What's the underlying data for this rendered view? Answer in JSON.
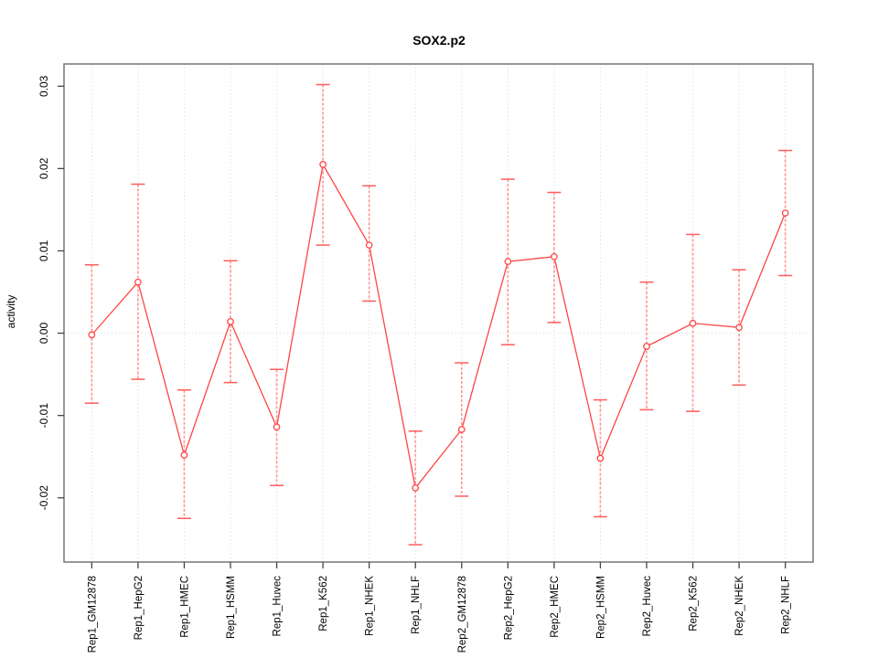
{
  "figure": {
    "title": "SOX2.p2"
  },
  "chart_data": {
    "type": "line",
    "title": "SOX2.p2",
    "xlabel": "",
    "ylabel": "activity",
    "legend_position": "none",
    "grid": {
      "vertical": "dotted line at every category",
      "horizontal": "dotted line at y=0 only"
    },
    "categories": [
      "Rep1_GM12878",
      "Rep1_HepG2",
      "Rep1_HMEC",
      "Rep1_HSMM",
      "Rep1_Huvec",
      "Rep1_K562",
      "Rep1_NHEK",
      "Rep1_NHLF",
      "Rep2_GM12878",
      "Rep2_HepG2",
      "Rep2_HMEC",
      "Rep2_HSMM",
      "Rep2_Huvec",
      "Rep2_K562",
      "Rep2_NHEK",
      "Rep2_NHLF"
    ],
    "series": [
      {
        "name": "activity",
        "marker": "open-circle",
        "values": [
          -0.0002,
          0.0062,
          -0.0148,
          0.0014,
          -0.0114,
          0.0205,
          0.0107,
          -0.0188,
          -0.0117,
          0.0087,
          0.0093,
          -0.0152,
          -0.0016,
          0.0012,
          0.0007,
          0.0146
        ],
        "upper": [
          0.0083,
          0.0181,
          -0.0069,
          0.0088,
          -0.0044,
          0.0302,
          0.0179,
          -0.0119,
          -0.0036,
          0.0187,
          0.0171,
          -0.0081,
          0.0062,
          0.012,
          0.0077,
          0.0222
        ],
        "lower": [
          -0.0085,
          -0.0056,
          -0.0225,
          -0.006,
          -0.0185,
          0.0107,
          0.0039,
          -0.0257,
          -0.0198,
          -0.0014,
          0.0013,
          -0.0223,
          -0.0093,
          -0.0095,
          -0.0063,
          0.007
        ]
      }
    ],
    "ylim": [
      -0.0278,
      0.0327
    ],
    "yticks": [
      -0.02,
      -0.01,
      0,
      0.01,
      0.02,
      0.03
    ],
    "ytick_labels": [
      "-0.02",
      "-0.01",
      "0.00",
      "0.01",
      "0.02",
      "0.03"
    ],
    "colors": {
      "line": "#ff4444",
      "marker_fill": "#ffffff",
      "error_stem": "#ff9a9a",
      "error_cap": "#ff5c5c",
      "grid": "#d9d9d9",
      "frame": "#777777",
      "tick": "#444444",
      "text": "#000000",
      "background": "#ffffff"
    }
  }
}
